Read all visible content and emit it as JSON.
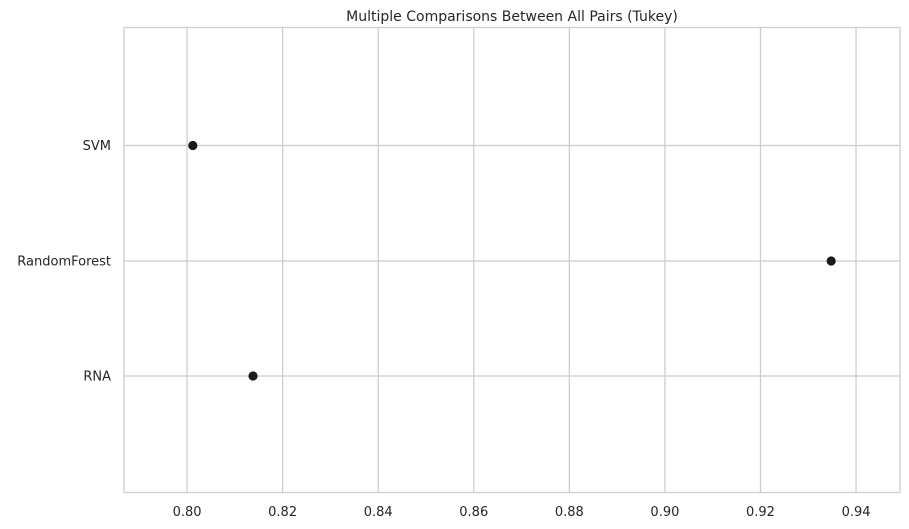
{
  "chart_data": {
    "type": "scatter",
    "title": "Multiple Comparisons Between All Pairs (Tukey)",
    "xlabel": "",
    "ylabel": "",
    "categories": [
      "SVM",
      "RandomForest",
      "RNA"
    ],
    "points": [
      {
        "label": "SVM",
        "x": 0.8012
      },
      {
        "label": "RandomForest",
        "x": 0.9348
      },
      {
        "label": "RNA",
        "x": 0.8138
      }
    ],
    "xlim": [
      0.7868,
      0.9492
    ],
    "x_ticks": [
      "0.80",
      "0.82",
      "0.84",
      "0.86",
      "0.88",
      "0.90",
      "0.92",
      "0.94"
    ],
    "grid": true,
    "colors": {
      "marker": "#1a1a1a",
      "grid": "#cccccc",
      "axes": "#cccccc",
      "text": "#262626"
    }
  }
}
